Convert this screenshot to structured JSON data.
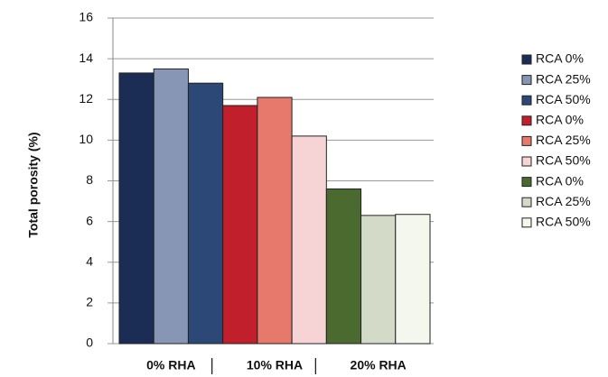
{
  "chart_data": {
    "type": "bar",
    "ylabel": "Total  porosity (%)",
    "categories": [
      "0% RHA",
      "10% RHA",
      "20% RHA"
    ],
    "series": [
      {
        "name": "RCA 0%",
        "color": "#1b2d55",
        "values": [
          13.3,
          null,
          null
        ]
      },
      {
        "name": "RCA 25%",
        "color": "#8796b5",
        "values": [
          13.5,
          null,
          null
        ]
      },
      {
        "name": "RCA 50%",
        "color": "#2b4876",
        "values": [
          12.8,
          null,
          null
        ]
      },
      {
        "name": "RCA 0%",
        "color": "#c11f2b",
        "values": [
          null,
          11.7,
          null
        ]
      },
      {
        "name": "RCA 25%",
        "color": "#e6796b",
        "values": [
          null,
          12.1,
          null
        ]
      },
      {
        "name": "RCA 50%",
        "color": "#f6d3d5",
        "values": [
          null,
          10.2,
          null
        ]
      },
      {
        "name": "RCA 0%",
        "color": "#4b6a2f",
        "values": [
          null,
          null,
          7.6
        ]
      },
      {
        "name": "RCA 25%",
        "color": "#d3dac7",
        "values": [
          null,
          null,
          6.3
        ]
      },
      {
        "name": "RCA 50%",
        "color": "#f4f7ee",
        "values": [
          null,
          null,
          6.35
        ]
      }
    ],
    "ylim": [
      0,
      16
    ],
    "yticks": [
      0,
      2,
      4,
      6,
      8,
      10,
      12,
      14,
      16
    ],
    "grid": true,
    "legend": "right"
  }
}
